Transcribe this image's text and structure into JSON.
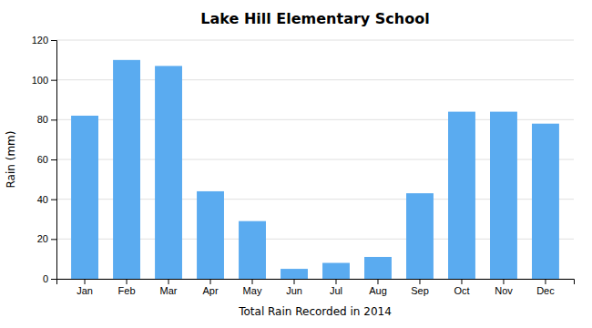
{
  "chart_data": {
    "type": "bar",
    "title": "Lake Hill Elementary School",
    "xlabel": "Total Rain Recorded in 2014",
    "ylabel": "Rain (mm)",
    "categories": [
      "Jan",
      "Feb",
      "Mar",
      "Apr",
      "May",
      "Jun",
      "Jul",
      "Aug",
      "Sep",
      "Oct",
      "Nov",
      "Dec"
    ],
    "values": [
      82,
      110,
      107,
      44,
      29,
      5,
      8,
      11,
      43,
      84,
      84,
      78
    ],
    "color": "#5AABF0",
    "ylim": [
      0,
      120
    ],
    "yticks": [
      0,
      20,
      40,
      60,
      80,
      100,
      120
    ],
    "grid": true
  }
}
